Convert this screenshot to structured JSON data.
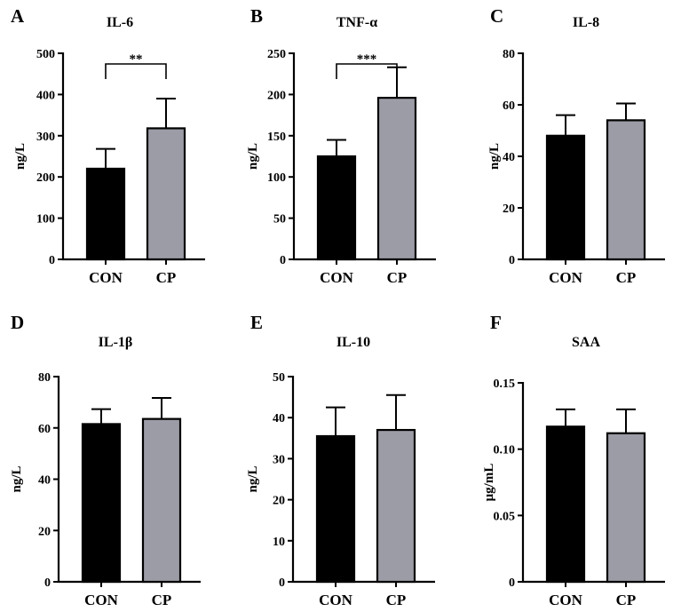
{
  "chart_data": [
    {
      "type": "bar",
      "panel": "A",
      "title": "IL-6",
      "ylabel": "ng/L",
      "categories": [
        "CON",
        "CP"
      ],
      "values": [
        220,
        318
      ],
      "errors": [
        48,
        72
      ],
      "ylim": [
        0,
        500
      ],
      "yticks": [
        0,
        100,
        200,
        300,
        400,
        500
      ],
      "tick_labels": [
        "0",
        "100",
        "200",
        "300",
        "400",
        "500"
      ],
      "significance": "**",
      "colors": [
        "#000000",
        "#9b9ca6"
      ]
    },
    {
      "type": "bar",
      "panel": "B",
      "title": "TNF-α",
      "ylabel": "ng/L",
      "categories": [
        "CON",
        "CP"
      ],
      "values": [
        125,
        196
      ],
      "errors": [
        20,
        37
      ],
      "ylim": [
        0,
        250
      ],
      "yticks": [
        0,
        50,
        100,
        150,
        200,
        250
      ],
      "tick_labels": [
        "0",
        "50",
        "100",
        "150",
        "200",
        "250"
      ],
      "significance": "***",
      "colors": [
        "#000000",
        "#9b9ca6"
      ]
    },
    {
      "type": "bar",
      "panel": "C",
      "title": "IL-8",
      "ylabel": "ng/L",
      "categories": [
        "CON",
        "CP"
      ],
      "values": [
        48,
        54
      ],
      "errors": [
        8,
        6.5
      ],
      "ylim": [
        0,
        80
      ],
      "yticks": [
        0,
        20,
        40,
        60,
        80
      ],
      "tick_labels": [
        "0",
        "20",
        "40",
        "60",
        "80"
      ],
      "significance": "",
      "colors": [
        "#000000",
        "#9b9ca6"
      ]
    },
    {
      "type": "bar",
      "panel": "D",
      "title": "IL-1β",
      "ylabel": "ng/L",
      "categories": [
        "CON",
        "CP"
      ],
      "values": [
        61.5,
        63.5
      ],
      "errors": [
        5.8,
        8.2
      ],
      "ylim": [
        0,
        80
      ],
      "yticks": [
        0,
        20,
        40,
        60,
        80
      ],
      "tick_labels": [
        "0",
        "20",
        "40",
        "60",
        "80"
      ],
      "significance": "",
      "colors": [
        "#000000",
        "#9b9ca6"
      ]
    },
    {
      "type": "bar",
      "panel": "E",
      "title": "IL-10",
      "ylabel": "ng/L",
      "categories": [
        "CON",
        "CP"
      ],
      "values": [
        35.5,
        37
      ],
      "errors": [
        7,
        8.5
      ],
      "ylim": [
        0,
        50
      ],
      "yticks": [
        0,
        10,
        20,
        30,
        40,
        50
      ],
      "tick_labels": [
        "0",
        "10",
        "20",
        "30",
        "40",
        "50"
      ],
      "significance": "",
      "colors": [
        "#000000",
        "#9b9ca6"
      ]
    },
    {
      "type": "bar",
      "panel": "F",
      "title": "SAA",
      "ylabel": "μg/mL",
      "categories": [
        "CON",
        "CP"
      ],
      "values": [
        0.117,
        0.112
      ],
      "errors": [
        0.013,
        0.018
      ],
      "ylim": [
        0,
        0.15
      ],
      "yticks": [
        0,
        0.05,
        0.1,
        0.15
      ],
      "tick_labels": [
        "0",
        "0.05",
        "0.10",
        "0.15"
      ],
      "significance": "",
      "colors": [
        "#000000",
        "#9b9ca6"
      ]
    }
  ]
}
